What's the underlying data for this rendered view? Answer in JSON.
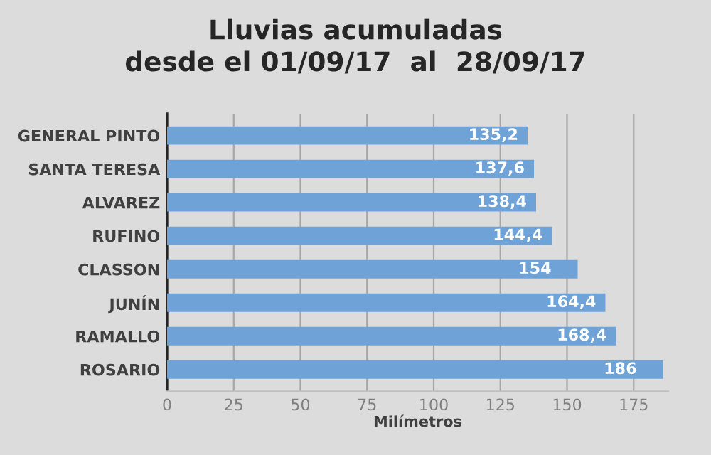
{
  "chart_data": {
    "type": "bar",
    "orientation": "horizontal",
    "title": "Lluvias acumuladas\ndesde el 01/09/17  al  28/09/17",
    "xlabel": "Milímetros",
    "categories": [
      "GENERAL PINTO",
      "SANTA TERESA",
      "ALVAREZ",
      "RUFINO",
      "CLASSON",
      "JUNÍN",
      "RAMALLO",
      "ROSARIO"
    ],
    "values": [
      135.2,
      137.6,
      138.4,
      144.4,
      154,
      164.4,
      168.4,
      186
    ],
    "value_labels": [
      "135,2",
      "137,6",
      "138,4",
      "144,4",
      "154",
      "164,4",
      "168,4",
      "186"
    ],
    "color": "#6fa3d8",
    "xlim": [
      0,
      188
    ],
    "xticks": [
      0,
      25,
      50,
      75,
      100,
      125,
      150,
      175
    ],
    "grid": "x"
  }
}
